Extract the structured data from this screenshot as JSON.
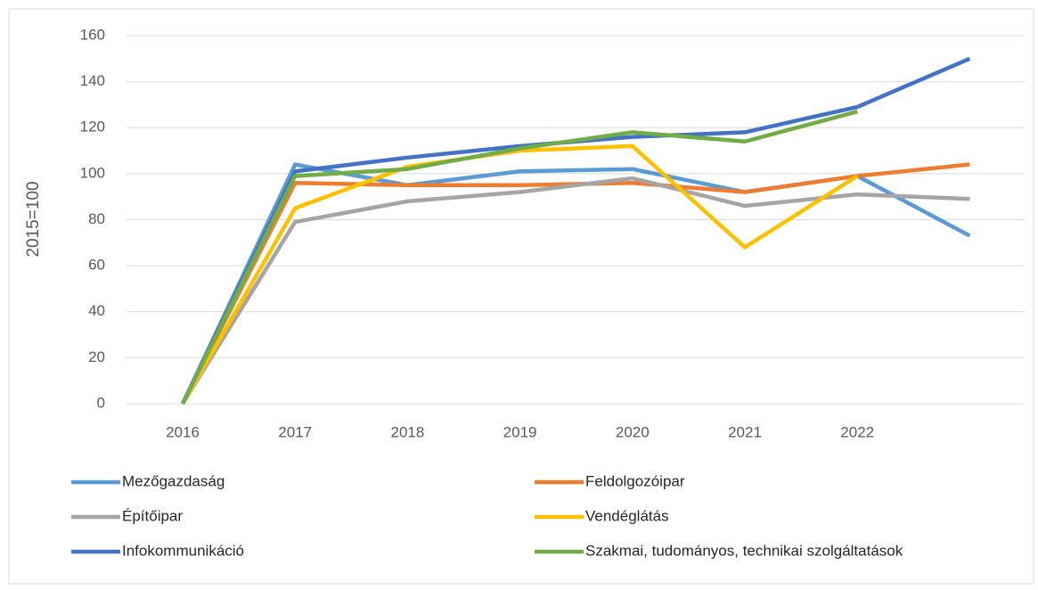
{
  "chart_data": {
    "type": "line",
    "y_label": "2015=100",
    "categories": [
      "2016",
      "2017",
      "2018",
      "2019",
      "2020",
      "2021",
      "2022",
      null
    ],
    "ylim": [
      0,
      160
    ],
    "yticks": [
      0,
      20,
      40,
      60,
      80,
      100,
      120,
      140,
      160
    ],
    "grid": true,
    "series": [
      {
        "name": "Mezőgazdaság",
        "color": "#5b9bd5",
        "values": [
          0,
          104,
          95,
          101,
          102,
          92,
          99,
          73
        ]
      },
      {
        "name": "Feldolgozóipar",
        "color": "#ed7d31",
        "values": [
          0,
          96,
          95,
          95,
          96,
          92,
          99,
          104
        ]
      },
      {
        "name": "Építőipar",
        "color": "#a5a5a5",
        "values": [
          0,
          79,
          88,
          92,
          98,
          86,
          91,
          89
        ]
      },
      {
        "name": "Vendéglátás",
        "color": "#ffc000",
        "values": [
          0,
          85,
          103,
          110,
          112,
          68,
          99,
          null
        ]
      },
      {
        "name": "Infokommunikáció",
        "color": "#4472c4",
        "values": [
          0,
          101,
          107,
          112,
          116,
          118,
          129,
          150
        ]
      },
      {
        "name": "Szakmai, tudományos, technikai szolgáltatások",
        "color": "#70ad47",
        "values": [
          0,
          99,
          102,
          111,
          118,
          114,
          127,
          null
        ]
      }
    ]
  }
}
